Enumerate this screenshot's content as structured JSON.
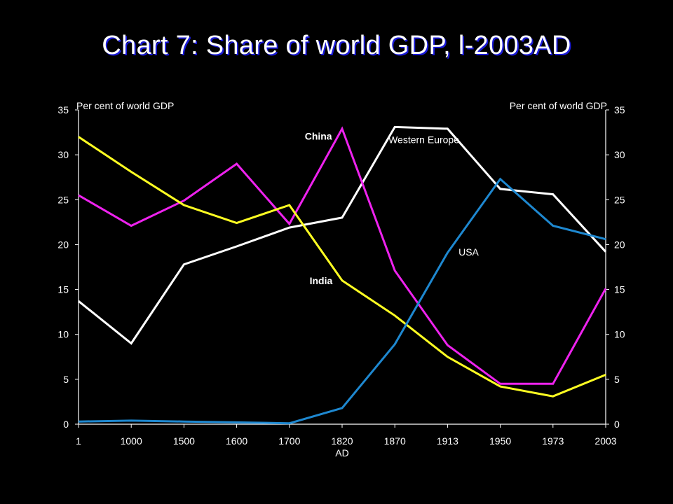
{
  "title": "Chart 7: Share of world GDP, l-2003AD",
  "chart_data": {
    "type": "line",
    "categories": [
      "1",
      "1000",
      "1500",
      "1600",
      "1700",
      "1820",
      "1870",
      "1913",
      "1950",
      "1973",
      "2003"
    ],
    "xlabel": "AD",
    "ylabel_left": "Per cent of world GDP",
    "ylabel_right": "Per cent of world GDP",
    "ylim": [
      0,
      35
    ],
    "yticks": [
      0,
      5,
      10,
      15,
      20,
      25,
      30,
      35
    ],
    "grid": false,
    "series": [
      {
        "name": "Western  Europe",
        "color": "#ffffff",
        "label_bold": false,
        "label_at": 6.55,
        "label_y": 31.3,
        "values": [
          13.7,
          9.0,
          17.8,
          19.8,
          21.9,
          23.0,
          33.1,
          32.9,
          26.2,
          25.6,
          19.2
        ]
      },
      {
        "name": "China",
        "color": "#ee22ee",
        "label_bold": true,
        "label_at": 4.55,
        "label_y": 31.7,
        "values": [
          25.5,
          22.1,
          24.9,
          29.0,
          22.3,
          32.9,
          17.1,
          8.8,
          4.5,
          4.5,
          15.1
        ]
      },
      {
        "name": "India",
        "color": "#ffff22",
        "label_bold": true,
        "label_at": 4.6,
        "label_y": 15.6,
        "values": [
          32.0,
          28.1,
          24.4,
          22.4,
          24.4,
          16.0,
          12.1,
          7.5,
          4.2,
          3.1,
          5.5
        ]
      },
      {
        "name": "USA",
        "color": "#1e88d0",
        "label_bold": false,
        "label_at": 7.4,
        "label_y": 18.8,
        "values": [
          0.3,
          0.4,
          0.3,
          0.2,
          0.1,
          1.8,
          8.9,
          19.1,
          27.3,
          22.1,
          20.6
        ]
      }
    ]
  }
}
